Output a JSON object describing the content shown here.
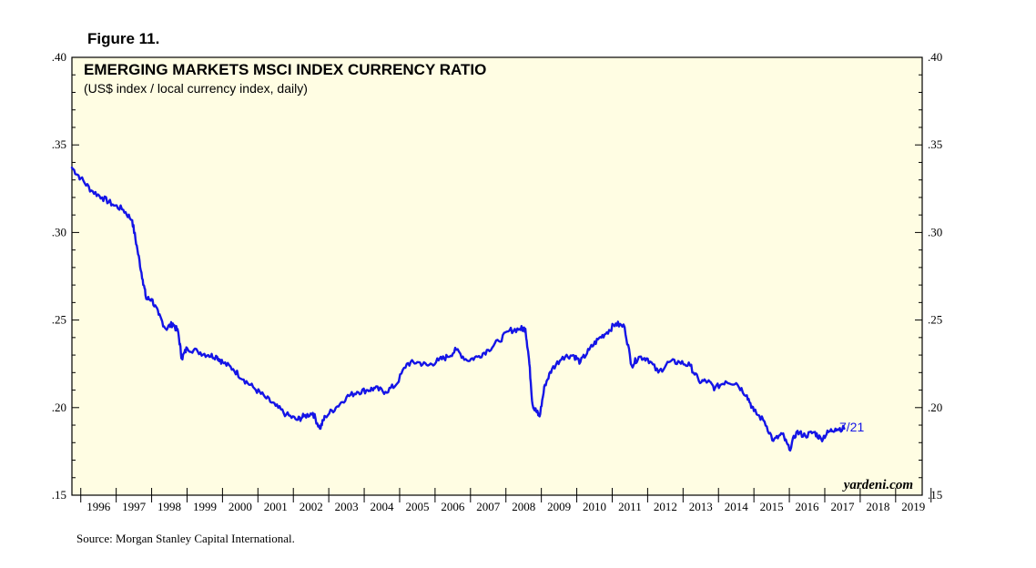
{
  "figure_label": "Figure 11.",
  "source": "Source: Morgan Stanley Capital International.",
  "watermark": "yardeni.com",
  "chart_data": {
    "type": "line",
    "title": "EMERGING MARKETS MSCI INDEX CURRENCY RATIO",
    "subtitle": "(US$ index / local currency index, daily)",
    "xlabel": "",
    "ylabel": "",
    "xlim": [
      1995.75,
      2019.75
    ],
    "ylim": [
      0.15,
      0.4
    ],
    "y_ticks": [
      0.15,
      0.2,
      0.25,
      0.3,
      0.35,
      0.4
    ],
    "y_tick_labels": [
      ".15",
      ".20",
      ".25",
      ".30",
      ".35",
      ".40"
    ],
    "x_tick_labels": [
      "1996",
      "1997",
      "1998",
      "1999",
      "2000",
      "2001",
      "2002",
      "2003",
      "2004",
      "2005",
      "2006",
      "2007",
      "2008",
      "2009",
      "2010",
      "2011",
      "2012",
      "2013",
      "2014",
      "2015",
      "2016",
      "2017",
      "2018",
      "2019"
    ],
    "annotation": "7/21",
    "background_color": "#fffde3",
    "line_color": "#1414e6",
    "series": [
      {
        "name": "EM MSCI currency ratio",
        "x": [
          1995.75,
          1996.0,
          1996.3,
          1996.6,
          1996.9,
          1997.2,
          1997.45,
          1997.6,
          1997.75,
          1997.85,
          1998.0,
          1998.2,
          1998.4,
          1998.6,
          1998.75,
          1998.85,
          1999.0,
          1999.3,
          1999.6,
          1999.85,
          2000.0,
          2000.3,
          2000.6,
          2000.9,
          2001.2,
          2001.5,
          2001.8,
          2002.1,
          2002.3,
          2002.55,
          2002.75,
          2002.9,
          2003.2,
          2003.5,
          2003.8,
          2004.1,
          2004.3,
          2004.6,
          2004.9,
          2005.2,
          2005.5,
          2005.8,
          2006.1,
          2006.35,
          2006.6,
          2006.9,
          2007.2,
          2007.5,
          2007.8,
          2008.1,
          2008.4,
          2008.55,
          2008.65,
          2008.75,
          2008.85,
          2008.95,
          2009.1,
          2009.3,
          2009.6,
          2009.9,
          2010.1,
          2010.35,
          2010.6,
          2010.85,
          2011.1,
          2011.35,
          2011.55,
          2011.75,
          2012.0,
          2012.3,
          2012.6,
          2012.9,
          2013.2,
          2013.45,
          2013.7,
          2013.9,
          2014.2,
          2014.5,
          2014.8,
          2015.0,
          2015.3,
          2015.55,
          2015.8,
          2016.0,
          2016.2,
          2016.45,
          2016.7,
          2016.9,
          2017.1,
          2017.3,
          2017.55
        ],
        "y": [
          0.337,
          0.331,
          0.324,
          0.32,
          0.316,
          0.313,
          0.307,
          0.29,
          0.273,
          0.262,
          0.262,
          0.253,
          0.245,
          0.248,
          0.243,
          0.228,
          0.234,
          0.232,
          0.23,
          0.229,
          0.226,
          0.222,
          0.216,
          0.211,
          0.206,
          0.201,
          0.196,
          0.193,
          0.195,
          0.197,
          0.188,
          0.195,
          0.2,
          0.206,
          0.209,
          0.21,
          0.211,
          0.209,
          0.213,
          0.225,
          0.226,
          0.224,
          0.227,
          0.229,
          0.233,
          0.227,
          0.229,
          0.233,
          0.238,
          0.244,
          0.245,
          0.245,
          0.228,
          0.202,
          0.198,
          0.195,
          0.213,
          0.222,
          0.229,
          0.23,
          0.226,
          0.233,
          0.239,
          0.243,
          0.248,
          0.246,
          0.224,
          0.229,
          0.228,
          0.22,
          0.226,
          0.226,
          0.224,
          0.215,
          0.215,
          0.211,
          0.215,
          0.214,
          0.207,
          0.198,
          0.192,
          0.181,
          0.185,
          0.176,
          0.186,
          0.184,
          0.186,
          0.182,
          0.186,
          0.188,
          0.188
        ]
      }
    ]
  }
}
